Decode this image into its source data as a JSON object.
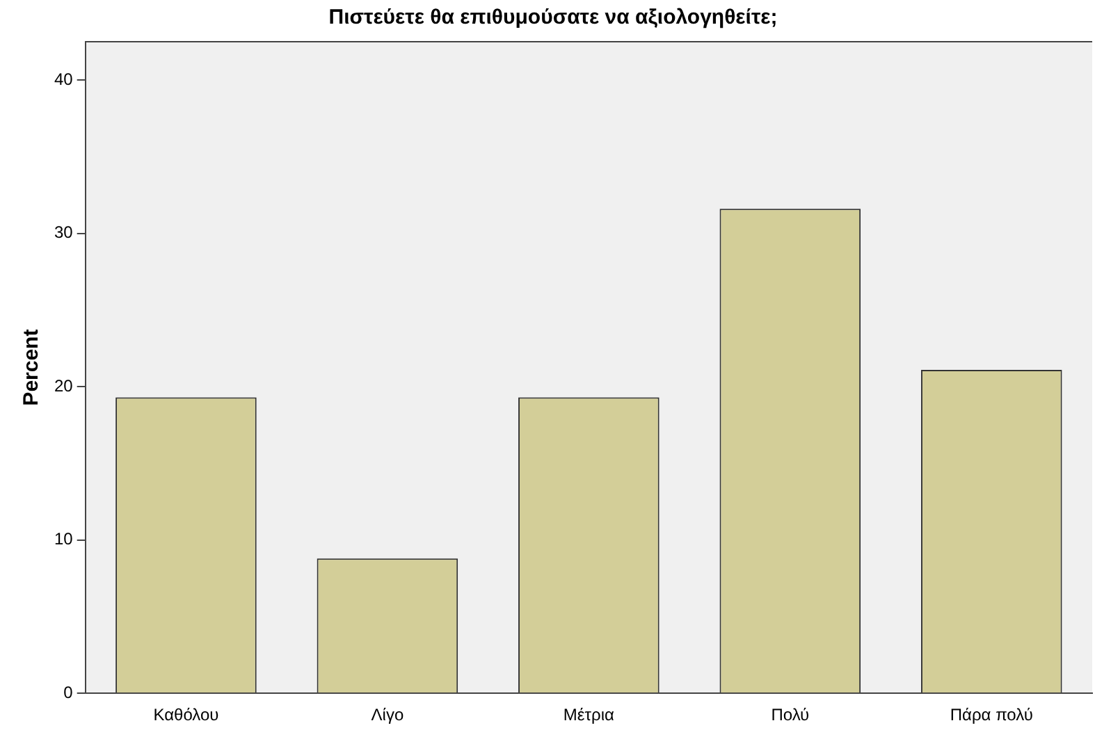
{
  "chart_data": {
    "type": "bar",
    "title": "Πιστεύετε θα επιθυμούσατε να αξιολογηθείτε;",
    "ylabel": "Percent",
    "categories": [
      "Καθόλου",
      "Λίγο",
      "Μέτρια",
      "Πολύ",
      "Πάρα πολύ"
    ],
    "values": [
      19.3,
      8.8,
      19.3,
      31.6,
      21.1
    ],
    "color": "#d3ce98",
    "ylim": [
      0,
      42.5
    ],
    "yticks": [
      0,
      10,
      20,
      30,
      40
    ],
    "grid": false,
    "legend": false
  }
}
